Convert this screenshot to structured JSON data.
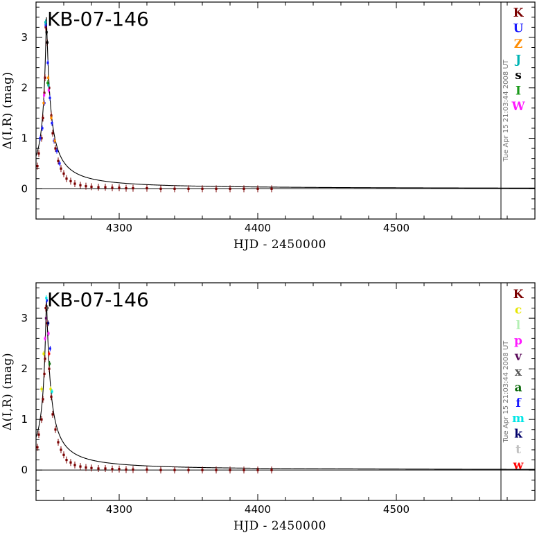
{
  "chart_data": [
    {
      "type": "scatter",
      "title": "KB-07-146",
      "xlabel": "HJD - 2450000",
      "ylabel": "Δ(I,R) (mag)",
      "xlim": [
        4240,
        4600
      ],
      "ylim": [
        -0.6,
        3.7
      ],
      "xticks": [
        4300,
        4400,
        4500
      ],
      "yticks": [
        0,
        1,
        2,
        3
      ],
      "stamp": "Tue Apr 15 21:03:44 2008 UT",
      "model": {
        "t0": 4247.5,
        "peak": 3.4,
        "baseline": 0.0
      },
      "legend": [
        {
          "label": "K",
          "color": "#7a0000"
        },
        {
          "label": "U",
          "color": "#1a1aff"
        },
        {
          "label": "Z",
          "color": "#ff8c00"
        },
        {
          "label": "J",
          "color": "#00b4b4"
        },
        {
          "label": "s",
          "color": "#000000"
        },
        {
          "label": "I",
          "color": "#1a9a1a"
        },
        {
          "label": "W",
          "color": "#ff1aff"
        }
      ],
      "series": [
        {
          "label": "K",
          "x": [
            4241,
            4242,
            4244,
            4245,
            4246,
            4246.5,
            4247,
            4248,
            4249.5,
            4251,
            4252,
            4254,
            4256,
            4258,
            4260,
            4262,
            4265,
            4268,
            4272,
            4276,
            4280,
            4285,
            4290,
            4295,
            4300,
            4305,
            4310,
            4320,
            4330,
            4340,
            4350,
            4360,
            4370,
            4380,
            4390,
            4400,
            4410
          ],
          "y": [
            0.45,
            0.7,
            1.0,
            1.4,
            1.9,
            2.2,
            3.2,
            2.9,
            2.0,
            1.45,
            1.1,
            0.8,
            0.55,
            0.4,
            0.3,
            0.2,
            0.15,
            0.1,
            0.07,
            0.05,
            0.04,
            0.03,
            0.03,
            0.02,
            0.02,
            0.01,
            0.01,
            0.01,
            0.0,
            0.0,
            0.0,
            0.0,
            0.0,
            0.0,
            0.0,
            0.0,
            0.0
          ]
        },
        {
          "label": "U",
          "x": [
            4243,
            4244.5,
            4246,
            4247,
            4248.5,
            4250,
            4251.5,
            4253,
            4255,
            4257
          ],
          "y": [
            1.0,
            1.2,
            1.7,
            3.25,
            2.5,
            1.8,
            1.3,
            0.95,
            0.75,
            0.5
          ]
        },
        {
          "label": "Z",
          "x": [
            4245.5,
            4248.8,
            4251,
            4253.5
          ],
          "y": [
            1.7,
            2.2,
            1.4,
            0.95
          ]
        },
        {
          "label": "J",
          "x": [
            4246.8,
            4249
          ],
          "y": [
            3.3,
            2.05
          ]
        },
        {
          "label": "s",
          "x": [
            4247.6,
            4248.2
          ],
          "y": [
            3.1,
            2.9
          ]
        },
        {
          "label": "I",
          "x": [
            4248.4
          ],
          "y": [
            2.1
          ]
        },
        {
          "label": "W",
          "x": [
            4245.8,
            4249.2
          ],
          "y": [
            1.85,
            1.95
          ]
        }
      ]
    },
    {
      "type": "scatter",
      "title": "KB-07-146",
      "xlabel": "HJD - 2450000",
      "ylabel": "Δ(I,R) (mag)",
      "xlim": [
        4240,
        4600
      ],
      "ylim": [
        -0.6,
        3.7
      ],
      "xticks": [
        4300,
        4400,
        4500
      ],
      "yticks": [
        0,
        1,
        2,
        3
      ],
      "stamp": "Tue Apr 15 21:03:44 2008 UT",
      "model": {
        "t0": 4247.5,
        "peak": 3.4,
        "baseline": 0.0
      },
      "legend": [
        {
          "label": "K",
          "color": "#7a0000"
        },
        {
          "label": "c",
          "color": "#e6e600"
        },
        {
          "label": "l",
          "color": "#b4f0b4"
        },
        {
          "label": "p",
          "color": "#ff1aff"
        },
        {
          "label": "v",
          "color": "#5a0a5a"
        },
        {
          "label": "x",
          "color": "#555555"
        },
        {
          "label": "a",
          "color": "#0a6a0a"
        },
        {
          "label": "f",
          "color": "#1a1aff"
        },
        {
          "label": "m",
          "color": "#00e6e6"
        },
        {
          "label": "k",
          "color": "#00006a"
        },
        {
          "label": "t",
          "color": "#c0c0c0"
        },
        {
          "label": "w",
          "color": "#ff0000"
        }
      ],
      "series": [
        {
          "label": "K",
          "x": [
            4241,
            4242,
            4244,
            4245,
            4246,
            4246.5,
            4247,
            4248,
            4249.5,
            4251,
            4252,
            4254,
            4256,
            4258,
            4260,
            4262,
            4265,
            4268,
            4272,
            4276,
            4280,
            4285,
            4290,
            4295,
            4300,
            4305,
            4310,
            4320,
            4330,
            4340,
            4350,
            4360,
            4370,
            4380,
            4390,
            4400,
            4410
          ],
          "y": [
            0.45,
            0.7,
            1.0,
            1.4,
            1.9,
            2.2,
            3.2,
            2.9,
            2.0,
            1.45,
            1.1,
            0.8,
            0.55,
            0.4,
            0.3,
            0.2,
            0.15,
            0.1,
            0.07,
            0.05,
            0.04,
            0.03,
            0.03,
            0.02,
            0.02,
            0.01,
            0.01,
            0.01,
            0.0,
            0.0,
            0.0,
            0.0,
            0.0,
            0.0,
            0.0,
            0.0,
            0.0
          ]
        },
        {
          "label": "c",
          "x": [
            4244,
            4245.5,
            4250.5
          ],
          "y": [
            1.6,
            2.3,
            1.6
          ]
        },
        {
          "label": "p",
          "x": [
            4246.5,
            4249
          ],
          "y": [
            2.6,
            2.7
          ]
        },
        {
          "label": "v",
          "x": [
            4247.2
          ],
          "y": [
            3.0
          ]
        },
        {
          "label": "x",
          "x": [
            4248.3
          ],
          "y": [
            3.2
          ]
        },
        {
          "label": "a",
          "x": [
            4249.8
          ],
          "y": [
            2.1
          ]
        },
        {
          "label": "f",
          "x": [
            4247.8,
            4250.2
          ],
          "y": [
            3.35,
            2.4
          ]
        },
        {
          "label": "m",
          "x": [
            4247.4,
            4251.5
          ],
          "y": [
            3.4,
            1.55
          ]
        },
        {
          "label": "k",
          "x": [
            4248.8
          ],
          "y": [
            2.9
          ]
        },
        {
          "label": "w",
          "x": [
            4249.4
          ],
          "y": [
            2.3
          ]
        }
      ]
    }
  ]
}
